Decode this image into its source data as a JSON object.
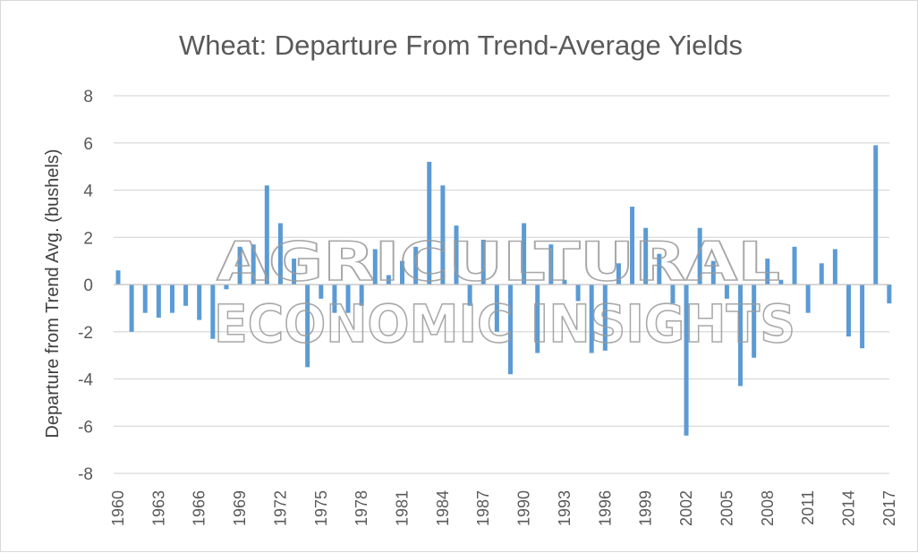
{
  "chart_data": {
    "type": "bar",
    "title": "Wheat: Departure From Trend-Average Yields",
    "ylabel": "Departure from Trend Avg. (bushels)",
    "xlabel": "",
    "ylim": [
      -8,
      8
    ],
    "yticks": [
      -8,
      -6,
      -4,
      -2,
      0,
      2,
      4,
      6,
      8
    ],
    "xtick_labels": [
      "1960",
      "1963",
      "1966",
      "1969",
      "1972",
      "1975",
      "1978",
      "1981",
      "1984",
      "1987",
      "1990",
      "1993",
      "1996",
      "1999",
      "2002",
      "2005",
      "2008",
      "2011",
      "2014",
      "2017"
    ],
    "grid": true,
    "legend": "none",
    "bar_color": "#5b9bd5",
    "categories": [
      "1960",
      "1961",
      "1962",
      "1963",
      "1964",
      "1965",
      "1966",
      "1967",
      "1968",
      "1969",
      "1970",
      "1971",
      "1972",
      "1973",
      "1974",
      "1975",
      "1976",
      "1977",
      "1978",
      "1979",
      "1980",
      "1981",
      "1982",
      "1983",
      "1984",
      "1985",
      "1986",
      "1987",
      "1988",
      "1989",
      "1990",
      "1991",
      "1992",
      "1993",
      "1994",
      "1995",
      "1996",
      "1997",
      "1998",
      "1999",
      "2000",
      "2001",
      "2002",
      "2003",
      "2004",
      "2005",
      "2006",
      "2007",
      "2008",
      "2009",
      "2010",
      "2011",
      "2012",
      "2013",
      "2014",
      "2015",
      "2016",
      "2017"
    ],
    "values": [
      0.6,
      -2.0,
      -1.2,
      -1.4,
      -1.2,
      -0.9,
      -1.5,
      -2.3,
      -0.2,
      1.6,
      1.7,
      4.2,
      2.6,
      1.1,
      -3.5,
      -0.6,
      -1.2,
      -1.2,
      -0.9,
      1.5,
      0.4,
      1.0,
      1.6,
      5.2,
      4.2,
      2.5,
      -0.9,
      1.9,
      -2.0,
      -3.8,
      2.6,
      -2.9,
      1.7,
      0.2,
      -0.7,
      -2.9,
      -2.8,
      0.9,
      3.3,
      2.4,
      1.3,
      -0.8,
      -6.4,
      2.4,
      1.0,
      -0.6,
      -4.3,
      -3.1,
      1.1,
      0.2,
      1.6,
      -1.2,
      0.9,
      1.5,
      -2.2,
      -2.7,
      5.9,
      -0.8
    ]
  },
  "watermark": {
    "line1": "AGRICULTURAL",
    "line2": "ECONOMIC INSIGHTS"
  }
}
